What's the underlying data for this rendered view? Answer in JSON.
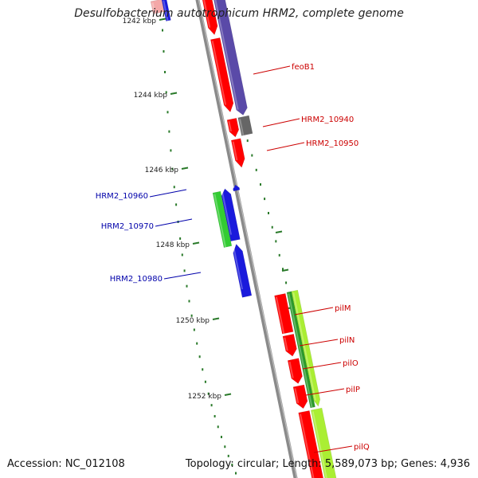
{
  "title": "Desulfobacterium autotrophicum HRM2, complete genome",
  "accession": "Accession: NC_012108",
  "topology": "Topology: circular; Length: 5,589,073 bp; Genes: 4,936",
  "colors": {
    "backbone": "#8a8a8a",
    "tick": "#2a7a2a",
    "label_plus": "#cc0000",
    "label_minus": "#0000aa",
    "red": "#ff0000",
    "blue": "#1a1adc",
    "purple": "#5a4aa8",
    "gray": "#666666",
    "green": "#33cc33",
    "darkgreen": "#2a9a2a",
    "lime": "#aaee33"
  },
  "scale": {
    "unit": "kbp",
    "labels": [
      "1242 kbp",
      "1244 kbp",
      "1246 kbp",
      "1248 kbp",
      "1250 kbp",
      "1252 kbp"
    ]
  },
  "genes": [
    {
      "label": "feoB1",
      "strand": "plus"
    },
    {
      "label": "HRM2_10940",
      "strand": "plus"
    },
    {
      "label": "HRM2_10950",
      "strand": "plus"
    },
    {
      "label": "HRM2_10960",
      "strand": "minus"
    },
    {
      "label": "HRM2_10970",
      "strand": "minus"
    },
    {
      "label": "HRM2_10980",
      "strand": "minus"
    },
    {
      "label": "pilM",
      "strand": "plus"
    },
    {
      "label": "pilN",
      "strand": "plus"
    },
    {
      "label": "pilO",
      "strand": "plus"
    },
    {
      "label": "pilP",
      "strand": "plus"
    },
    {
      "label": "pilQ",
      "strand": "plus"
    }
  ]
}
